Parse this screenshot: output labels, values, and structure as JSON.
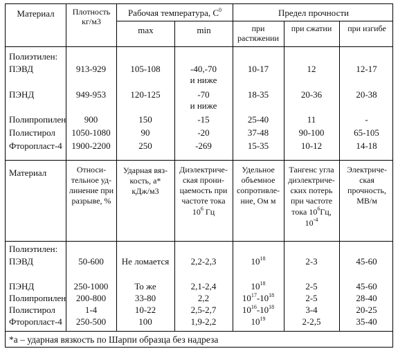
{
  "header1": {
    "material": "Материал",
    "density": "Плотность кг/м3",
    "work_temp": "Рабочая температура, С",
    "work_temp_sup": "0",
    "strength": "Предел прочности",
    "max": "max",
    "min": "min",
    "tension": "при растяжении",
    "compression": "при сжатии",
    "bending": "при изгибе"
  },
  "group_label": "Полиэтилен:",
  "table1_rows": [
    {
      "name": "ПЭВД",
      "density": "913-929",
      "tmax": "105-108",
      "tmin": "-40,-70",
      "tmin_note": "и ниже",
      "tension": "10-17",
      "compression": "12",
      "bending": "12-17"
    },
    {
      "name": "ПЭНД",
      "density": "949-953",
      "tmax": "120-125",
      "tmin": "-70",
      "tmin_note": "и ниже",
      "tension": "18-35",
      "compression": "20-36",
      "bending": "20-38"
    },
    {
      "name": "Полипропилен",
      "density": "900",
      "tmax": "150",
      "tmin": "-15",
      "tmin_note": "",
      "tension": "25-40",
      "compression": "11",
      "bending": "-"
    },
    {
      "name": "Полистирол",
      "density": "1050-1080",
      "tmax": "90",
      "tmin": "-20",
      "tmin_note": "",
      "tension": "37-48",
      "compression": "90-100",
      "bending": "65-105"
    },
    {
      "name": "Фторопласт-4",
      "density": "1900-2200",
      "tmax": "250",
      "tmin": "-269",
      "tmin_note": "",
      "tension": "15-35",
      "compression": "10-12",
      "bending": "14-18"
    }
  ],
  "header2": {
    "material": "Материал",
    "elongation": "Относи-тельное уд-линение при разрыве, %",
    "impact_l1": "Ударная вяз-",
    "impact_l2": "кость, а*",
    "impact_l3": "кДж/м3",
    "diel_l1": "Диэлектриче-",
    "diel_l2": "ская прони-",
    "diel_l3": "цаемость при",
    "diel_l4": "частоте тока",
    "diel_l5a": "10",
    "diel_l5sup": "6",
    "diel_l5b": " Гц",
    "resist": "Удельное объемное сопротивле-ние, Ом м",
    "tan_l1": "Тангенс угла",
    "tan_l2": "диэлектриче-",
    "tan_l3": "ских потерь",
    "tan_l4": "при частоте",
    "tan_l5a": "тока 10",
    "tan_l5sup": "6",
    "tan_l5b": "Гц,",
    "tan_l6a": "10",
    "tan_l6sup": "-4",
    "strength_e": "Электриче-ская прочность, МВ/м"
  },
  "table2_rows": [
    {
      "name": "ПЭВД",
      "elong": "50-600",
      "impact": "Не ломается",
      "diel": "2,2-2,3",
      "res_base": "10",
      "res_sup": "18",
      "res_base2": "",
      "res_sup2": "",
      "tan": "2-3",
      "estr": "45-60"
    },
    {
      "name": "ПЭНД",
      "elong": "250-1000",
      "impact": "То же",
      "diel": "2,1-2,4",
      "res_base": "10",
      "res_sup": "18",
      "res_base2": "",
      "res_sup2": "",
      "tan": "2-5",
      "estr": "45-60"
    },
    {
      "name": "Полипропилен",
      "elong": "200-800",
      "impact": "33-80",
      "diel": "2,2",
      "res_base": "10",
      "res_sup": "17",
      "res_base2": "-10",
      "res_sup2": "18",
      "tan": "2-5",
      "estr": "28-40"
    },
    {
      "name": "Полистирол",
      "elong": "1-4",
      "impact": "10-22",
      "diel": "2,5-2,7",
      "res_base": "10",
      "res_sup": "16",
      "res_base2": "-10",
      "res_sup2": "18",
      "tan": "3-4",
      "estr": "20-25"
    },
    {
      "name": "Фторопласт-4",
      "elong": "250-500",
      "impact": "100",
      "diel": "1,9-2,2",
      "res_base": "10",
      "res_sup": "19",
      "res_base2": "",
      "res_sup2": "",
      "tan": "2-2,5",
      "estr": "35-40"
    }
  ],
  "footnote": "*а – ударная вязкость по Шарпи образца без надреза"
}
